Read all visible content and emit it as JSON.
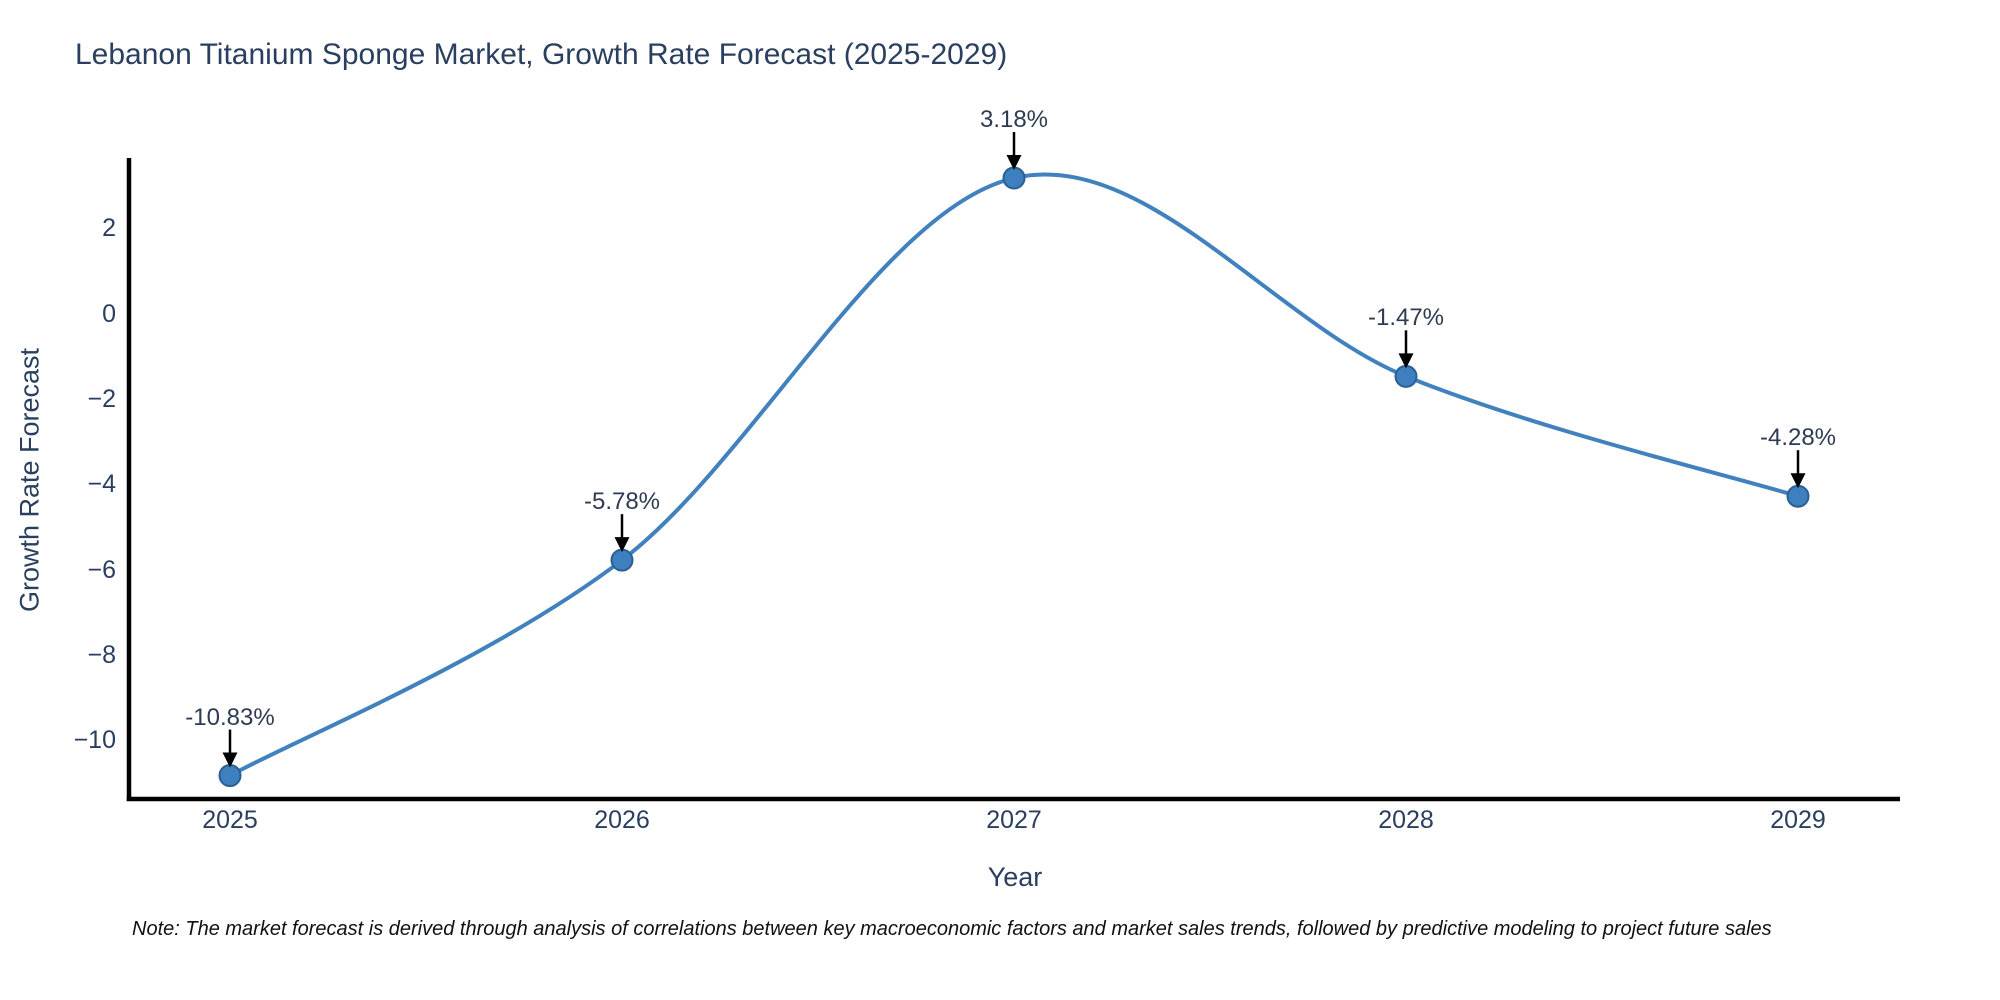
{
  "title": "Lebanon Titanium Sponge Market, Growth Rate Forecast (2025-2029)",
  "note": "Note: The market forecast is derived through analysis of correlations between key macroeconomic factors and market sales trends, followed by predictive modeling to project future sales",
  "chart_data": {
    "type": "line",
    "title": "Lebanon Titanium Sponge Market, Growth Rate Forecast (2025-2029)",
    "xlabel": "Year",
    "ylabel": "Growth Rate Forecast",
    "categories": [
      "2025",
      "2026",
      "2027",
      "2028",
      "2029"
    ],
    "x": [
      2025,
      2026,
      2027,
      2028,
      2029
    ],
    "values": [
      -10.83,
      -5.78,
      3.18,
      -1.47,
      -4.28
    ],
    "point_labels": [
      "-10.83%",
      "-5.78%",
      "3.18%",
      "-1.47%",
      "-4.28%"
    ],
    "yticks": [
      2,
      0,
      -2,
      -4,
      -6,
      -8,
      -10
    ],
    "ytick_labels": [
      "2",
      "0",
      "−2",
      "−4",
      "−6",
      "−8",
      "−10"
    ],
    "ylim": [
      -11.45,
      3.65
    ],
    "grid": false,
    "legend_position": "none",
    "line_shape": "spline",
    "colors": {
      "line": "#4181bd",
      "marker": "#3e80bf",
      "marker_edge": "#2a6093",
      "axis_spine": "#000000",
      "text": "#2a3f5f",
      "annotation_arrow": "#000000"
    }
  }
}
